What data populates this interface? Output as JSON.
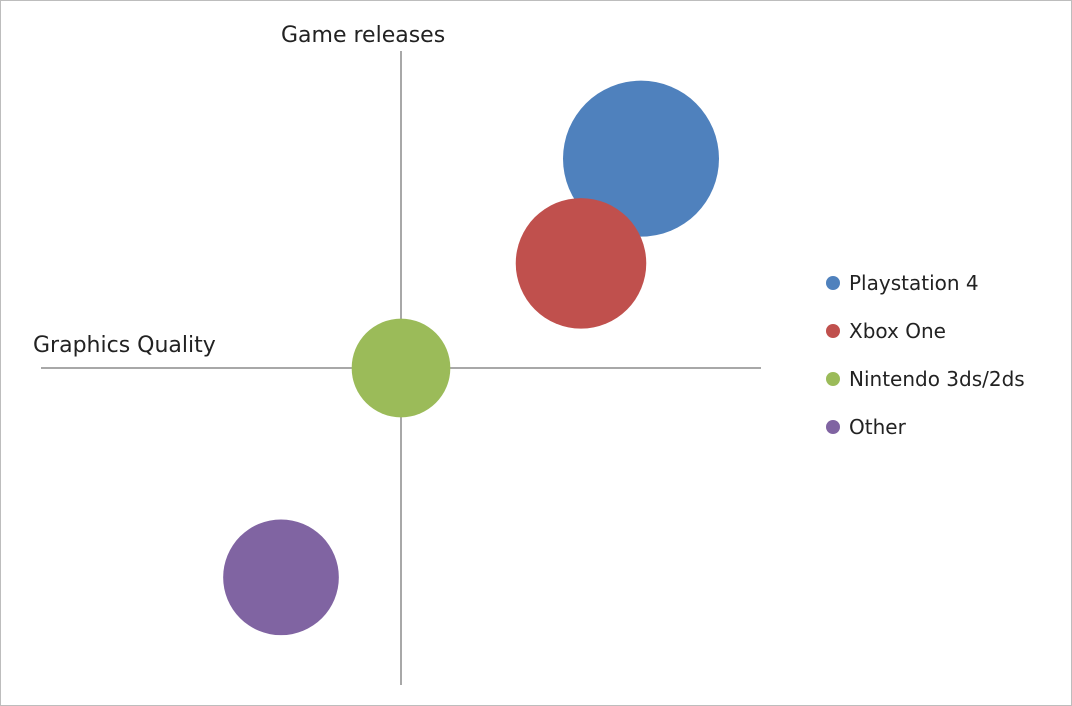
{
  "chart_data": {
    "type": "bubble",
    "title": "",
    "xlabel": "Graphics Quality",
    "ylabel": "Game releases",
    "xlim": [
      -6,
      6
    ],
    "ylim": [
      -5.3,
      5.3
    ],
    "grid": false,
    "legend_position": "right",
    "series": [
      {
        "name": "Playstation 4",
        "x": 4.0,
        "y": 3.5,
        "size": 10,
        "color": "#4F81BD"
      },
      {
        "name": "Xbox One",
        "x": 3.0,
        "y": 1.75,
        "size": 7,
        "color": "#C0504D"
      },
      {
        "name": "Nintendo 3ds/2ds",
        "x": 0.0,
        "y": 0.0,
        "size": 4,
        "color": "#9BBB59"
      },
      {
        "name": "Other",
        "x": -2.0,
        "y": -3.5,
        "size": 5.5,
        "color": "#8064A2"
      }
    ]
  }
}
